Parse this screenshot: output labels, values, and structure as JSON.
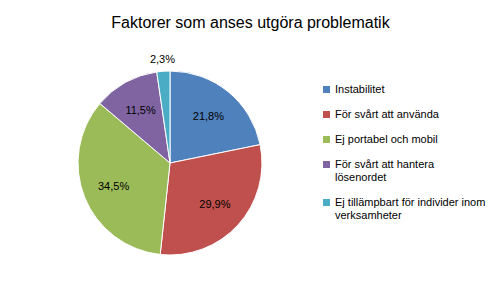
{
  "chart_data": {
    "type": "pie",
    "title": "Faktorer som anses utgöra problematik",
    "categories": [
      "Instabilitet",
      "För svårt att använda",
      "Ej portabel och mobil",
      "För svårt att hantera lösenordet",
      "Ej tillämpbart för individer inom verksamheter"
    ],
    "values": [
      21.8,
      29.9,
      34.5,
      11.5,
      2.3
    ],
    "value_labels": [
      "21,8%",
      "29,9%",
      "34,5%",
      "11,5%",
      "2,3%"
    ],
    "colors": [
      "#4f81bd",
      "#c0504d",
      "#9bbb59",
      "#8064a2",
      "#4bacc6"
    ],
    "data_labels": true,
    "legend": "right"
  }
}
